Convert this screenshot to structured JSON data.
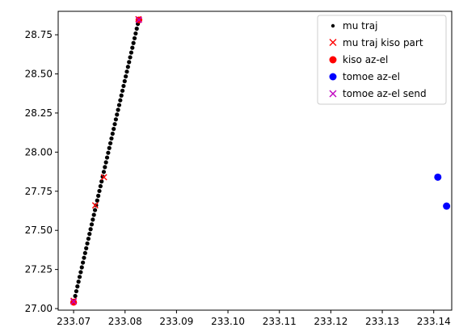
{
  "chart_data": {
    "type": "scatter",
    "title": "",
    "xlabel": "",
    "ylabel": "",
    "xlim": [
      233.067,
      233.1435
    ],
    "ylim": [
      26.99,
      28.9
    ],
    "x_ticks": [
      233.07,
      233.08,
      233.09,
      233.1,
      233.11,
      233.12,
      233.13,
      233.14
    ],
    "x_tick_labels": [
      "233.07",
      "233.08",
      "233.09",
      "233.10",
      "233.11",
      "233.12",
      "233.13",
      "233.14"
    ],
    "y_ticks": [
      27.0,
      27.25,
      27.5,
      27.75,
      28.0,
      28.25,
      28.5,
      28.75
    ],
    "y_tick_labels": [
      "27.00",
      "27.25",
      "27.50",
      "27.75",
      "28.00",
      "28.25",
      "28.50",
      "28.75"
    ],
    "grid": false,
    "legend_position": "top-right",
    "series": [
      {
        "name": "mu traj",
        "marker": "dot",
        "color": "#000000",
        "line_from": [
          233.0701,
          27.05
        ],
        "line_to": [
          233.0827,
          28.85
        ],
        "n_points": 60
      },
      {
        "name": "mu traj kiso part",
        "marker": "x",
        "color": "#ff0000",
        "x": [
          233.07,
          233.0742,
          233.0759,
          233.0826
        ],
        "y": [
          27.05,
          27.66,
          27.84,
          28.85
        ]
      },
      {
        "name": "kiso az-el",
        "marker": "circle",
        "color": "#ff0000",
        "x": [
          233.07,
          233.0827
        ],
        "y": [
          27.04,
          28.845
        ]
      },
      {
        "name": "tomoe az-el",
        "marker": "circle",
        "color": "#0000ff",
        "x": [
          233.1408,
          233.1425
        ],
        "y": [
          27.84,
          27.655
        ]
      },
      {
        "name": "tomoe az-el send",
        "marker": "x",
        "color": "#bf00bf",
        "x": [
          233.07,
          233.0827
        ],
        "y": [
          27.045,
          28.845
        ]
      }
    ]
  }
}
